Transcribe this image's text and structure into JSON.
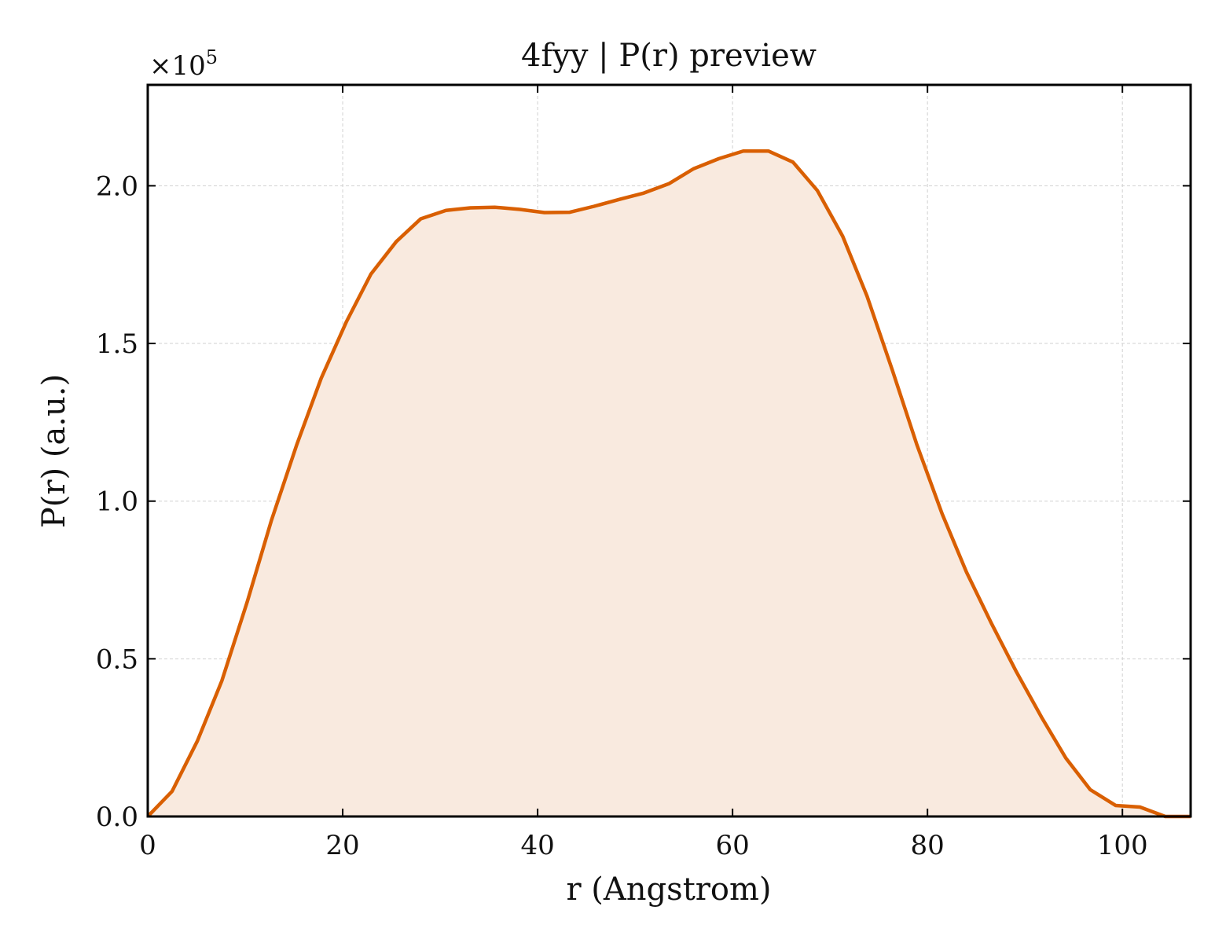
{
  "chart_data": {
    "type": "area",
    "title": "4fyy | P(r) preview",
    "xlabel": "r (Angstrom)",
    "ylabel": "P(r) (a.u.)",
    "y_scale_label": "×10",
    "y_scale_exponent": "5",
    "xlim": [
      0,
      107
    ],
    "ylim": [
      0,
      2.32
    ],
    "y_multiplier": 100000,
    "x_ticks": [
      0,
      20,
      40,
      60,
      80,
      100
    ],
    "x_tick_labels": [
      "0",
      "20",
      "40",
      "60",
      "80",
      "100"
    ],
    "y_ticks": [
      0,
      0.5,
      1.0,
      1.5,
      2.0
    ],
    "y_tick_labels": [
      "0.0",
      "0.5",
      "1.0",
      "1.5",
      "2.0"
    ],
    "grid": true,
    "legend": "none",
    "colors": {
      "line": "#d95f02",
      "fill": "#f9eadf",
      "grid": "#d0d0d0",
      "axes": "#000000"
    },
    "series": [
      {
        "x": [
          0,
          2.5,
          5.1,
          7.6,
          10.2,
          12.7,
          15.3,
          17.8,
          20.4,
          22.9,
          25.5,
          28.0,
          30.6,
          33.1,
          35.6,
          38.2,
          40.7,
          43.3,
          45.8,
          48.4,
          50.9,
          53.5,
          56.0,
          58.6,
          61.1,
          63.7,
          66.2,
          68.7,
          71.3,
          73.8,
          76.4,
          78.9,
          81.5,
          84.0,
          86.6,
          89.1,
          91.7,
          94.2,
          96.7,
          99.3,
          101.8,
          104.4,
          107.0
        ],
        "y": [
          0.0,
          0.08,
          0.24,
          0.43,
          0.68,
          0.94,
          1.18,
          1.39,
          1.57,
          1.72,
          1.823,
          1.895,
          1.922,
          1.93,
          1.932,
          1.925,
          1.915,
          1.916,
          1.935,
          1.957,
          1.977,
          2.007,
          2.054,
          2.086,
          2.11,
          2.11,
          2.075,
          1.985,
          1.84,
          1.65,
          1.415,
          1.18,
          0.96,
          0.775,
          0.61,
          0.46,
          0.315,
          0.185,
          0.085,
          0.035,
          0.03,
          0.0,
          0.0
        ]
      }
    ]
  }
}
